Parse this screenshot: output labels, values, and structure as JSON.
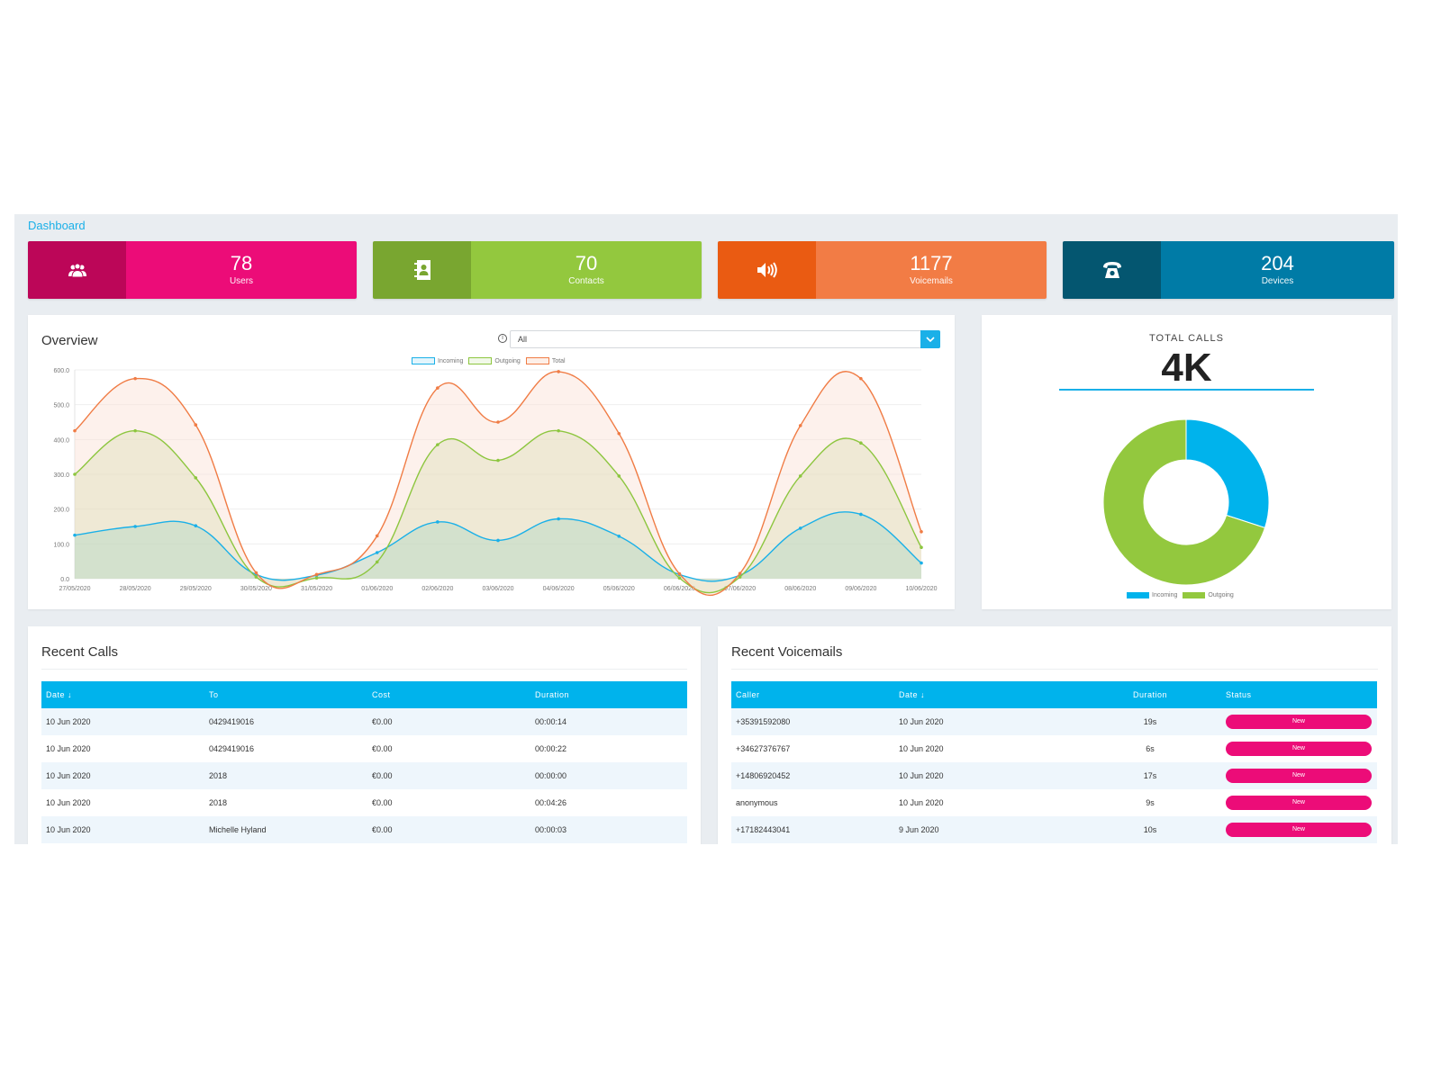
{
  "breadcrumb": "Dashboard",
  "stats": [
    {
      "value": "78",
      "label": "Users",
      "icon": "users-icon",
      "dark": "#bc0658",
      "light": "#ec0c78"
    },
    {
      "value": "70",
      "label": "Contacts",
      "icon": "address-book-icon",
      "dark": "#79a630",
      "light": "#93c83e"
    },
    {
      "value": "1177",
      "label": "Voicemails",
      "icon": "volume-icon",
      "dark": "#ea5b12",
      "light": "#f27c45"
    },
    {
      "value": "204",
      "label": "Devices",
      "icon": "phone-icon",
      "dark": "#045670",
      "light": "#007ba6"
    }
  ],
  "overview": {
    "title": "Overview",
    "filter_value": "All"
  },
  "totals": {
    "label": "TOTAL CALLS",
    "value": "4K"
  },
  "chart_data": [
    {
      "type": "area",
      "title": "Overview",
      "x": [
        "27/05/2020",
        "28/05/2020",
        "29/05/2020",
        "30/05/2020",
        "31/05/2020",
        "01/06/2020",
        "02/06/2020",
        "03/06/2020",
        "04/06/2020",
        "05/06/2020",
        "06/06/2020",
        "07/06/2020",
        "08/06/2020",
        "09/06/2020",
        "10/06/2020"
      ],
      "ylim": [
        0,
        600
      ],
      "yticks": [
        "0.0",
        "100.0",
        "200.0",
        "300.0",
        "400.0",
        "500.0",
        "600.0"
      ],
      "grid": true,
      "legend": "top-center",
      "series": [
        {
          "name": "Incoming",
          "color": "#1ab0e8",
          "fill": "rgba(178,214,196,0.45)",
          "values": [
            125,
            150,
            152,
            12,
            10,
            75,
            163,
            110,
            172,
            122,
            12,
            10,
            145,
            185,
            45
          ]
        },
        {
          "name": "Outgoing",
          "color": "#8dc63f",
          "fill": "rgba(218,222,180,0.4)",
          "values": [
            300,
            425,
            290,
            5,
            2,
            48,
            385,
            340,
            425,
            295,
            2,
            5,
            295,
            390,
            90
          ]
        },
        {
          "name": "Total",
          "color": "#f07c45",
          "fill": "rgba(250,225,212,0.45)",
          "values": [
            425,
            575,
            442,
            17,
            12,
            123,
            548,
            450,
            595,
            417,
            14,
            15,
            440,
            575,
            135
          ]
        }
      ]
    },
    {
      "type": "pie",
      "title": "TOTAL CALLS",
      "legend": "bottom",
      "categories": [
        "Incoming",
        "Outgoing"
      ],
      "values": [
        30,
        70
      ],
      "colors": [
        "#00b3ec",
        "#93c83e"
      ]
    }
  ],
  "recent_calls": {
    "title": "Recent Calls",
    "columns": [
      "Date ↓",
      "To",
      "Cost",
      "Duration"
    ],
    "rows": [
      [
        "10 Jun 2020",
        "0429419016",
        "€0.00",
        "00:00:14"
      ],
      [
        "10 Jun 2020",
        "0429419016",
        "€0.00",
        "00:00:22"
      ],
      [
        "10 Jun 2020",
        "2018",
        "€0.00",
        "00:00:00"
      ],
      [
        "10 Jun 2020",
        "2018",
        "€0.00",
        "00:04:26"
      ],
      [
        "10 Jun 2020",
        "Michelle Hyland",
        "€0.00",
        "00:00:03"
      ]
    ]
  },
  "recent_voicemails": {
    "title": "Recent Voicemails",
    "columns": [
      "Caller",
      "Date ↓",
      "Duration",
      "Status"
    ],
    "rows": [
      [
        "+35391592080",
        "10 Jun 2020",
        "19s",
        "New"
      ],
      [
        "+34627376767",
        "10 Jun 2020",
        "6s",
        "New"
      ],
      [
        "+14806920452",
        "10 Jun 2020",
        "17s",
        "New"
      ],
      [
        "anonymous",
        "10 Jun 2020",
        "9s",
        "New"
      ],
      [
        "+17182443041",
        "9 Jun 2020",
        "10s",
        "New"
      ]
    ]
  }
}
